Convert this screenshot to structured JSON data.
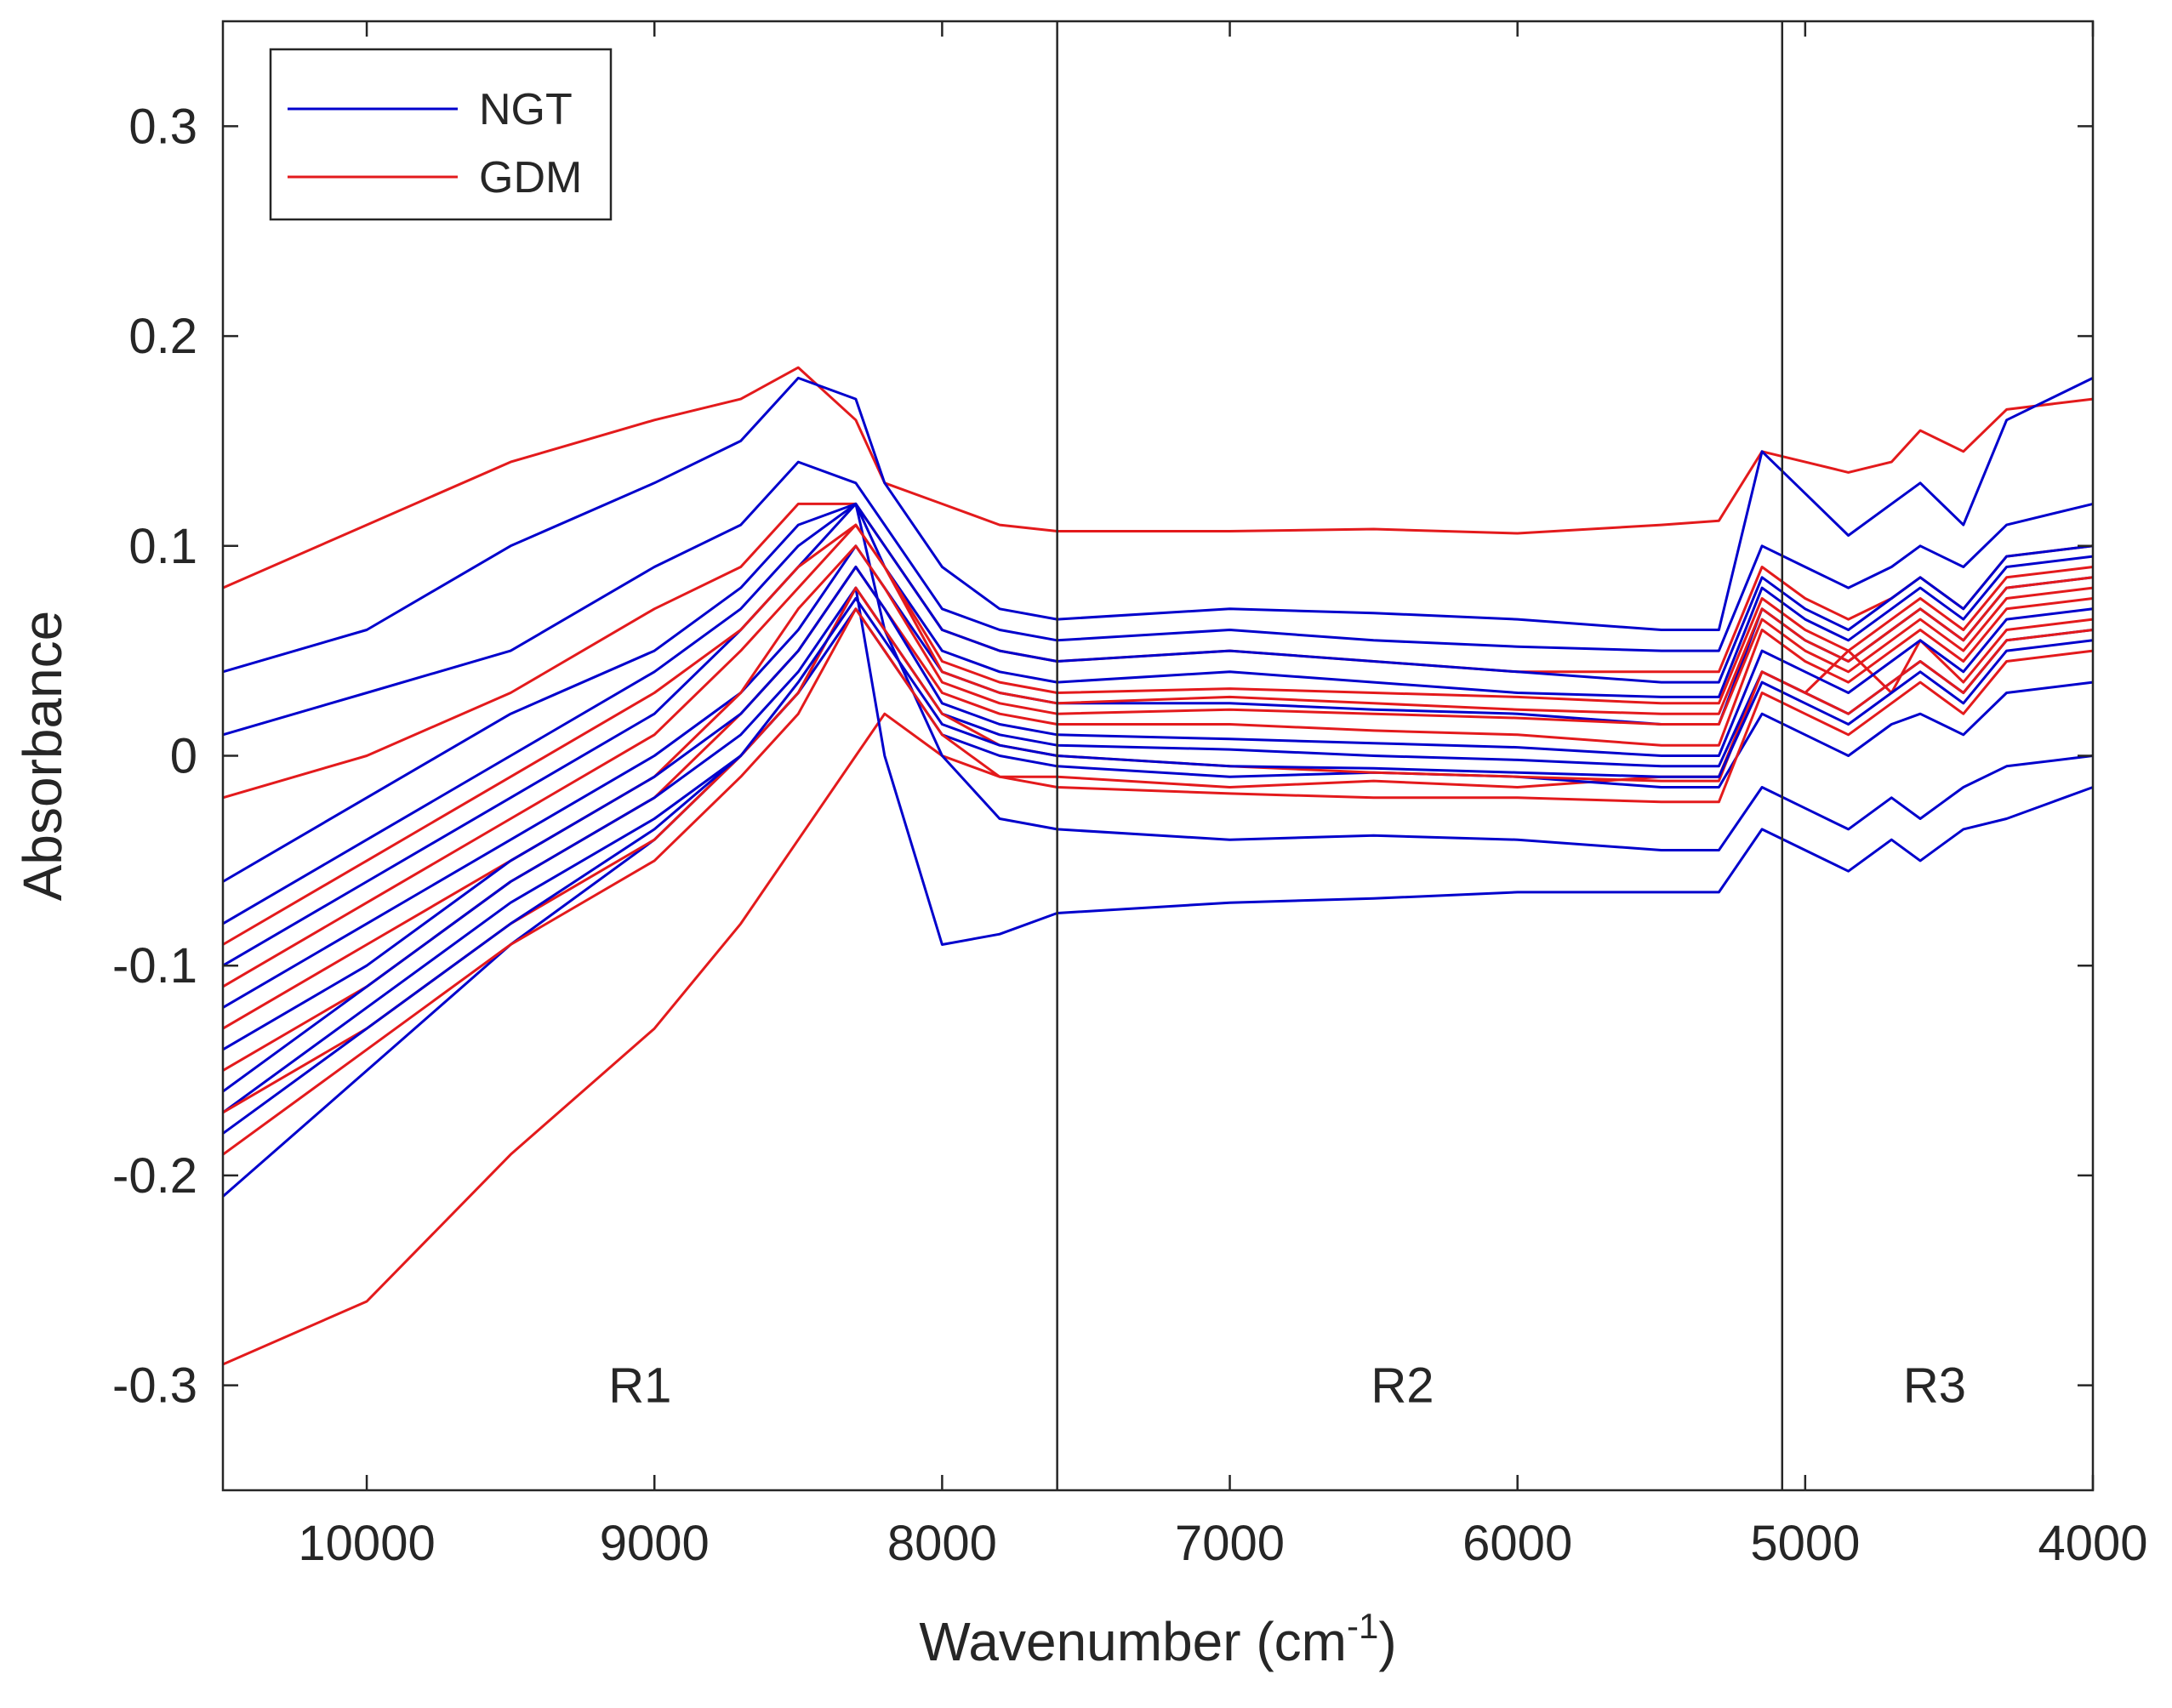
{
  "chart_data": {
    "type": "line",
    "xlabel": "Wavenumber (cm",
    "xlabel_superscript": "-1",
    "xlabel_suffix": ")",
    "ylabel": "Absorbance",
    "xlim": [
      10500,
      4000
    ],
    "x_reversed": true,
    "ylim": [
      -0.35,
      0.35
    ],
    "xticks": [
      10000,
      9000,
      8000,
      7000,
      6000,
      5000,
      4000
    ],
    "xtick_labels": [
      "10000",
      "9000",
      "8000",
      "7000",
      "6000",
      "5000",
      "4000"
    ],
    "yticks": [
      0.3,
      0.2,
      0.1,
      0,
      -0.1,
      -0.2,
      -0.3
    ],
    "ytick_labels": [
      "0.3",
      "0.2",
      "0.1",
      "0",
      "-0.1",
      "-0.2",
      "-0.3"
    ],
    "grid": false,
    "legend": {
      "position": "top-left",
      "entries": [
        {
          "name": "NGT",
          "color": "#0000CC"
        },
        {
          "name": "GDM",
          "color": "#E31A1C"
        }
      ]
    },
    "region_dividers": [
      7600,
      5080
    ],
    "region_labels": [
      {
        "text": "R1",
        "x": 9050,
        "y": -0.3
      },
      {
        "text": "R2",
        "x": 6400,
        "y": -0.3
      },
      {
        "text": "R3",
        "x": 4550,
        "y": -0.3
      }
    ],
    "x": [
      10500,
      10000,
      9500,
      9000,
      8700,
      8500,
      8300,
      8200,
      8000,
      7800,
      7600,
      7000,
      6500,
      6000,
      5500,
      5300,
      5150,
      5000,
      4850,
      4700,
      4600,
      4450,
      4300,
      4000
    ],
    "series": [
      {
        "name": "GDM",
        "color": "#E31A1C",
        "values": [
          -0.29,
          -0.26,
          -0.19,
          -0.13,
          -0.08,
          -0.04,
          0.0,
          0.02,
          0.0,
          -0.01,
          -0.01,
          -0.015,
          -0.012,
          -0.015,
          -0.01,
          -0.01,
          0.04,
          0.03,
          0.05,
          0.03,
          0.055,
          0.035,
          0.06,
          0.065
        ]
      },
      {
        "name": "GDM",
        "color": "#E31A1C",
        "values": [
          0.08,
          0.11,
          0.14,
          0.16,
          0.17,
          0.185,
          0.16,
          0.13,
          0.12,
          0.11,
          0.107,
          0.107,
          0.108,
          0.106,
          0.11,
          0.112,
          0.145,
          0.14,
          0.135,
          0.14,
          0.155,
          0.145,
          0.165,
          0.17
        ]
      },
      {
        "name": "NGT",
        "color": "#0000CC",
        "values": [
          0.04,
          0.06,
          0.1,
          0.13,
          0.15,
          0.18,
          0.17,
          0.13,
          0.09,
          0.07,
          0.065,
          0.07,
          0.068,
          0.065,
          0.06,
          0.06,
          0.145,
          0.125,
          0.105,
          0.12,
          0.13,
          0.11,
          0.16,
          0.18
        ]
      },
      {
        "name": "NGT",
        "color": "#0000CC",
        "values": [
          -0.21,
          -0.15,
          -0.09,
          -0.04,
          0.0,
          0.03,
          0.08,
          0.0,
          -0.09,
          -0.085,
          -0.075,
          -0.07,
          -0.068,
          -0.065,
          -0.065,
          -0.065,
          -0.035,
          -0.045,
          -0.055,
          -0.04,
          -0.05,
          -0.035,
          -0.03,
          -0.015
        ]
      },
      {
        "name": "NGT",
        "color": "#0000CC",
        "values": [
          -0.1,
          -0.06,
          -0.02,
          0.02,
          0.06,
          0.09,
          0.12,
          0.06,
          0.0,
          -0.03,
          -0.035,
          -0.04,
          -0.038,
          -0.04,
          -0.045,
          -0.045,
          -0.015,
          -0.025,
          -0.035,
          -0.02,
          -0.03,
          -0.015,
          -0.005,
          0.0
        ]
      },
      {
        "name": "NGT",
        "color": "#0000CC",
        "values": [
          0.01,
          0.03,
          0.05,
          0.09,
          0.11,
          0.14,
          0.13,
          0.11,
          0.07,
          0.06,
          0.055,
          0.06,
          0.055,
          0.052,
          0.05,
          0.05,
          0.1,
          0.09,
          0.08,
          0.09,
          0.1,
          0.09,
          0.11,
          0.12
        ]
      },
      {
        "name": "GDM",
        "color": "#E31A1C",
        "values": [
          -0.02,
          0.0,
          0.03,
          0.07,
          0.09,
          0.12,
          0.12,
          0.1,
          0.06,
          0.05,
          0.045,
          0.05,
          0.045,
          0.04,
          0.04,
          0.04,
          0.09,
          0.075,
          0.065,
          0.075,
          0.085,
          0.07,
          0.095,
          0.1
        ]
      },
      {
        "name": "NGT",
        "color": "#0000CC",
        "values": [
          -0.17,
          -0.12,
          -0.07,
          -0.03,
          0.0,
          0.03,
          0.07,
          0.05,
          0.01,
          0.0,
          -0.005,
          -0.01,
          -0.008,
          -0.01,
          -0.015,
          -0.015,
          0.02,
          0.01,
          0.0,
          0.015,
          0.02,
          0.01,
          0.03,
          0.035
        ]
      },
      {
        "name": "GDM",
        "color": "#E31A1C",
        "values": [
          -0.15,
          -0.11,
          -0.06,
          -0.02,
          0.02,
          0.05,
          0.09,
          0.07,
          0.03,
          0.02,
          0.015,
          0.015,
          0.012,
          0.01,
          0.005,
          0.005,
          0.06,
          0.045,
          0.035,
          0.05,
          0.06,
          0.045,
          0.07,
          0.075
        ]
      },
      {
        "name": "NGT",
        "color": "#0000CC",
        "values": [
          -0.12,
          -0.08,
          -0.04,
          0.0,
          0.03,
          0.06,
          0.1,
          0.08,
          0.04,
          0.03,
          0.025,
          0.025,
          0.022,
          0.02,
          0.015,
          0.015,
          0.07,
          0.055,
          0.045,
          0.06,
          0.07,
          0.055,
          0.08,
          0.085
        ]
      },
      {
        "name": "GDM",
        "color": "#E31A1C",
        "values": [
          -0.19,
          -0.14,
          -0.09,
          -0.05,
          -0.01,
          0.02,
          0.07,
          0.05,
          0.01,
          -0.01,
          -0.015,
          -0.018,
          -0.02,
          -0.02,
          -0.022,
          -0.022,
          0.03,
          0.02,
          0.01,
          0.025,
          0.035,
          0.02,
          0.045,
          0.05
        ]
      },
      {
        "name": "NGT",
        "color": "#0000CC",
        "values": [
          -0.08,
          -0.04,
          0.0,
          0.04,
          0.07,
          0.1,
          0.12,
          0.09,
          0.05,
          0.04,
          0.035,
          0.04,
          0.035,
          0.03,
          0.028,
          0.028,
          0.08,
          0.065,
          0.055,
          0.07,
          0.08,
          0.065,
          0.09,
          0.095
        ]
      },
      {
        "name": "GDM",
        "color": "#E31A1C",
        "values": [
          -0.13,
          -0.09,
          -0.05,
          -0.01,
          0.03,
          0.07,
          0.1,
          0.08,
          0.035,
          0.025,
          0.02,
          0.022,
          0.02,
          0.018,
          0.015,
          0.015,
          0.065,
          0.05,
          0.04,
          0.055,
          0.065,
          0.05,
          0.075,
          0.08
        ]
      },
      {
        "name": "NGT",
        "color": "#0000CC",
        "values": [
          -0.16,
          -0.11,
          -0.06,
          -0.02,
          0.01,
          0.04,
          0.08,
          0.06,
          0.02,
          0.01,
          0.005,
          0.003,
          0.0,
          -0.002,
          -0.005,
          -0.005,
          0.04,
          0.03,
          0.02,
          0.035,
          0.045,
          0.03,
          0.055,
          0.06
        ]
      },
      {
        "name": "GDM",
        "color": "#E31A1C",
        "values": [
          -0.11,
          -0.07,
          -0.03,
          0.01,
          0.05,
          0.08,
          0.11,
          0.09,
          0.045,
          0.035,
          0.03,
          0.032,
          0.03,
          0.028,
          0.025,
          0.025,
          0.075,
          0.06,
          0.05,
          0.065,
          0.075,
          0.06,
          0.085,
          0.09
        ]
      },
      {
        "name": "NGT",
        "color": "#0000CC",
        "values": [
          -0.14,
          -0.1,
          -0.05,
          -0.01,
          0.02,
          0.05,
          0.09,
          0.07,
          0.025,
          0.015,
          0.01,
          0.008,
          0.006,
          0.004,
          0.0,
          0.0,
          0.05,
          0.04,
          0.03,
          0.045,
          0.055,
          0.04,
          0.065,
          0.07
        ]
      },
      {
        "name": "GDM",
        "color": "#E31A1C",
        "values": [
          -0.17,
          -0.13,
          -0.08,
          -0.04,
          0.0,
          0.03,
          0.08,
          0.06,
          0.02,
          0.005,
          0.0,
          -0.005,
          -0.008,
          -0.01,
          -0.012,
          -0.012,
          0.04,
          0.03,
          0.02,
          0.035,
          0.045,
          0.03,
          0.055,
          0.06
        ]
      },
      {
        "name": "NGT",
        "color": "#0000CC",
        "values": [
          -0.06,
          -0.02,
          0.02,
          0.05,
          0.08,
          0.11,
          0.12,
          0.1,
          0.06,
          0.05,
          0.045,
          0.05,
          0.045,
          0.04,
          0.035,
          0.035,
          0.085,
          0.07,
          0.06,
          0.075,
          0.085,
          0.07,
          0.095,
          0.1
        ]
      },
      {
        "name": "GDM",
        "color": "#E31A1C",
        "values": [
          -0.09,
          -0.05,
          -0.01,
          0.03,
          0.06,
          0.09,
          0.11,
          0.09,
          0.04,
          0.03,
          0.025,
          0.028,
          0.025,
          0.022,
          0.02,
          0.02,
          0.07,
          0.055,
          0.045,
          0.06,
          0.07,
          0.055,
          0.08,
          0.085
        ]
      },
      {
        "name": "NGT",
        "color": "#0000CC",
        "values": [
          -0.18,
          -0.13,
          -0.08,
          -0.035,
          0.0,
          0.035,
          0.075,
          0.055,
          0.015,
          0.005,
          0.0,
          -0.005,
          -0.006,
          -0.008,
          -0.01,
          -0.01,
          0.035,
          0.025,
          0.015,
          0.03,
          0.04,
          0.025,
          0.05,
          0.055
        ]
      }
    ]
  }
}
